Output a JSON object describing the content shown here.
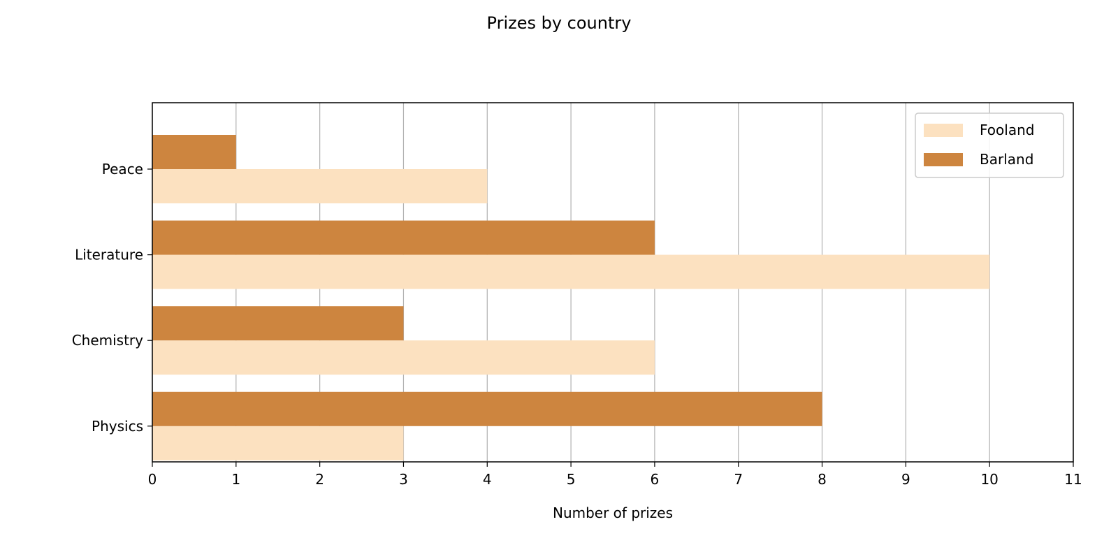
{
  "chart_data": {
    "type": "bar",
    "orientation": "horizontal",
    "title": "Prizes by country",
    "xlabel": "Number of prizes",
    "ylabel": "",
    "categories": [
      "Physics",
      "Chemistry",
      "Literature",
      "Peace"
    ],
    "series": [
      {
        "name": "Fooland",
        "values": [
          3,
          6,
          10,
          4
        ],
        "color": "#fce1c0"
      },
      {
        "name": "Barland",
        "values": [
          8,
          3,
          6,
          1
        ],
        "color": "#cd853f"
      }
    ],
    "xlim": [
      0,
      11
    ],
    "xticks": [
      "0",
      "1",
      "2",
      "3",
      "4",
      "5",
      "6",
      "7",
      "8",
      "9",
      "10",
      "11"
    ],
    "grid": "vertical",
    "legend_position": "top-right"
  }
}
